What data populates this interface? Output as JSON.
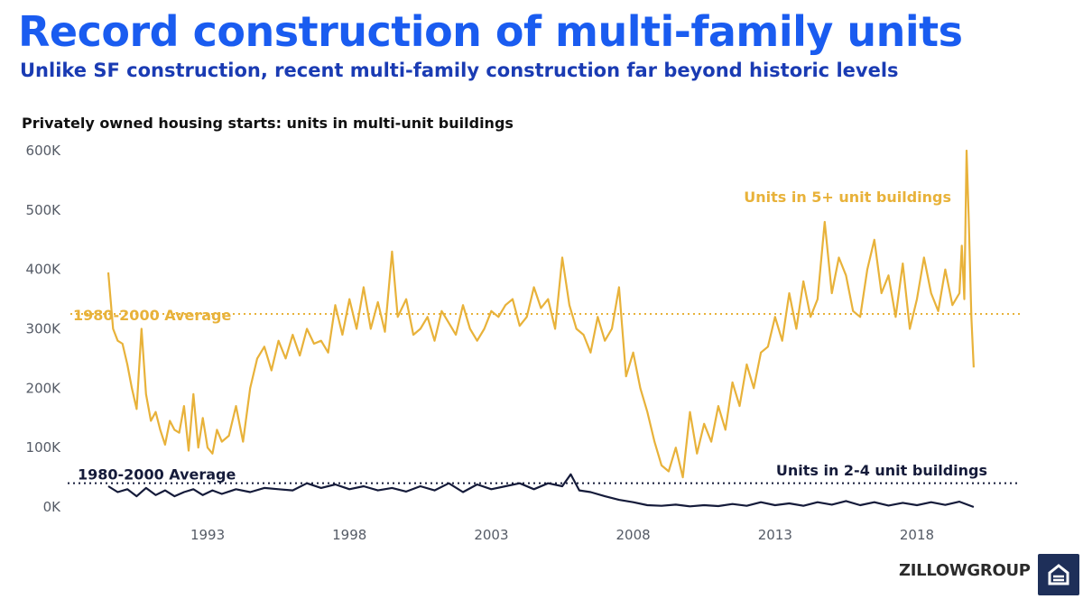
{
  "header": {
    "title": "Record construction of multi-family units",
    "subtitle": "Unlike SF construction, recent multi-family construction far beyond historic levels"
  },
  "brand": {
    "logo_text": "ZILLOWGROUP",
    "logo_icon": "zillow-house-icon"
  },
  "colors": {
    "title": "#1a5cf0",
    "subtitle": "#1a3bb3",
    "series_5plus": "#e8b23a",
    "series_2to4": "#151b3a",
    "badge": "#1e2f59"
  },
  "chart_data": {
    "type": "line",
    "title": "Privately owned housing starts: units in multi-unit buildings",
    "xlabel": "",
    "ylabel": "",
    "xlim": [
      1990.0,
      2020.6
    ],
    "ylim": [
      0,
      600000
    ],
    "x_ticks": [
      1993,
      1998,
      2003,
      2008,
      2013,
      2018
    ],
    "y_ticks": [
      {
        "value": 0,
        "label": "0K"
      },
      {
        "value": 100000,
        "label": "100K"
      },
      {
        "value": 200000,
        "label": "200K"
      },
      {
        "value": 300000,
        "label": "300K"
      },
      {
        "value": 400000,
        "label": "400K"
      },
      {
        "value": 500000,
        "label": "500K"
      },
      {
        "value": 600000,
        "label": "600K"
      }
    ],
    "grid": false,
    "legend": "none",
    "reference_lines": [
      {
        "label": "1980-2000 Average",
        "value": 325000,
        "series": "Units in 5+ unit buildings"
      },
      {
        "label": "1980-2000 Average",
        "value": 40000,
        "series": "Units in 2-4 unit buildings"
      }
    ],
    "series": [
      {
        "name": "Units in 5+ unit buildings",
        "x": [
          1990.0,
          1990.17,
          1990.33,
          1990.5,
          1990.67,
          1990.83,
          1991.0,
          1991.17,
          1991.33,
          1991.5,
          1991.67,
          1991.83,
          1992.0,
          1992.17,
          1992.33,
          1992.5,
          1992.67,
          1992.83,
          1993.0,
          1993.17,
          1993.33,
          1993.5,
          1993.67,
          1993.83,
          1994.0,
          1994.25,
          1994.5,
          1994.75,
          1995.0,
          1995.25,
          1995.5,
          1995.75,
          1996.0,
          1996.25,
          1996.5,
          1996.75,
          1997.0,
          1997.25,
          1997.5,
          1997.75,
          1998.0,
          1998.25,
          1998.5,
          1998.75,
          1999.0,
          1999.25,
          1999.5,
          1999.75,
          2000.0,
          2000.2,
          2000.5,
          2000.75,
          2001.0,
          2001.25,
          2001.5,
          2001.75,
          2002.0,
          2002.25,
          2002.5,
          2002.75,
          2003.0,
          2003.25,
          2003.5,
          2003.75,
          2004.0,
          2004.25,
          2004.5,
          2004.75,
          2005.0,
          2005.25,
          2005.5,
          2005.75,
          2006.0,
          2006.25,
          2006.5,
          2006.75,
          2007.0,
          2007.25,
          2007.5,
          2007.75,
          2008.0,
          2008.25,
          2008.5,
          2008.75,
          2009.0,
          2009.25,
          2009.5,
          2009.75,
          2010.0,
          2010.25,
          2010.5,
          2010.75,
          2011.0,
          2011.25,
          2011.5,
          2011.75,
          2012.0,
          2012.25,
          2012.5,
          2012.75,
          2013.0,
          2013.25,
          2013.5,
          2013.75,
          2014.0,
          2014.25,
          2014.5,
          2014.75,
          2015.0,
          2015.25,
          2015.5,
          2015.75,
          2016.0,
          2016.25,
          2016.5,
          2016.75,
          2017.0,
          2017.25,
          2017.5,
          2017.75,
          2018.0,
          2018.25,
          2018.5,
          2018.75,
          2019.0,
          2019.25,
          2019.5,
          2019.75,
          2020.0,
          2020.08,
          2020.17,
          2020.25,
          2020.33,
          2020.42,
          2020.5
        ],
        "values": [
          395000,
          300000,
          280000,
          275000,
          240000,
          200000,
          165000,
          300000,
          190000,
          145000,
          160000,
          130000,
          105000,
          145000,
          130000,
          125000,
          170000,
          95000,
          190000,
          100000,
          150000,
          100000,
          90000,
          130000,
          110000,
          120000,
          170000,
          110000,
          200000,
          250000,
          270000,
          230000,
          280000,
          250000,
          290000,
          255000,
          300000,
          275000,
          280000,
          260000,
          340000,
          290000,
          350000,
          300000,
          370000,
          300000,
          345000,
          295000,
          430000,
          320000,
          350000,
          290000,
          300000,
          320000,
          280000,
          330000,
          310000,
          290000,
          340000,
          300000,
          280000,
          300000,
          330000,
          320000,
          340000,
          350000,
          305000,
          320000,
          370000,
          335000,
          350000,
          300000,
          420000,
          340000,
          300000,
          290000,
          260000,
          320000,
          280000,
          300000,
          370000,
          220000,
          260000,
          200000,
          160000,
          110000,
          70000,
          60000,
          100000,
          50000,
          160000,
          90000,
          140000,
          110000,
          170000,
          130000,
          210000,
          170000,
          240000,
          200000,
          260000,
          270000,
          320000,
          280000,
          360000,
          300000,
          380000,
          320000,
          350000,
          480000,
          360000,
          420000,
          390000,
          330000,
          320000,
          400000,
          450000,
          360000,
          390000,
          320000,
          410000,
          300000,
          350000,
          420000,
          360000,
          330000,
          400000,
          340000,
          360000,
          440000,
          350000,
          600000,
          480000,
          320000,
          235000
        ]
      },
      {
        "name": "Units in 2-4 unit buildings",
        "x": [
          1990.0,
          1990.33,
          1990.67,
          1991.0,
          1991.33,
          1991.67,
          1992.0,
          1992.33,
          1992.67,
          1993.0,
          1993.33,
          1993.67,
          1994.0,
          1994.5,
          1995.0,
          1995.5,
          1996.0,
          1996.5,
          1997.0,
          1997.5,
          1998.0,
          1998.5,
          1999.0,
          1999.5,
          2000.0,
          2000.5,
          2001.0,
          2001.5,
          2002.0,
          2002.5,
          2003.0,
          2003.5,
          2004.0,
          2004.5,
          2005.0,
          2005.5,
          2006.0,
          2006.3,
          2006.6,
          2007.0,
          2007.5,
          2008.0,
          2008.5,
          2009.0,
          2009.5,
          2010.0,
          2010.5,
          2011.0,
          2011.5,
          2012.0,
          2012.5,
          2013.0,
          2013.5,
          2014.0,
          2014.5,
          2015.0,
          2015.5,
          2016.0,
          2016.5,
          2017.0,
          2017.5,
          2018.0,
          2018.5,
          2019.0,
          2019.5,
          2020.0,
          2020.5
        ],
        "values": [
          35000,
          25000,
          30000,
          18000,
          32000,
          20000,
          28000,
          18000,
          25000,
          30000,
          20000,
          28000,
          22000,
          30000,
          25000,
          32000,
          30000,
          28000,
          40000,
          32000,
          38000,
          30000,
          35000,
          28000,
          32000,
          26000,
          35000,
          28000,
          40000,
          25000,
          38000,
          30000,
          35000,
          40000,
          30000,
          40000,
          35000,
          55000,
          28000,
          25000,
          18000,
          12000,
          8000,
          3000,
          2000,
          4000,
          1000,
          3000,
          1500,
          5000,
          2000,
          8000,
          3000,
          6000,
          2000,
          8000,
          4000,
          10000,
          3000,
          8000,
          2500,
          7000,
          3000,
          8000,
          3500,
          9000,
          0
        ]
      }
    ]
  }
}
